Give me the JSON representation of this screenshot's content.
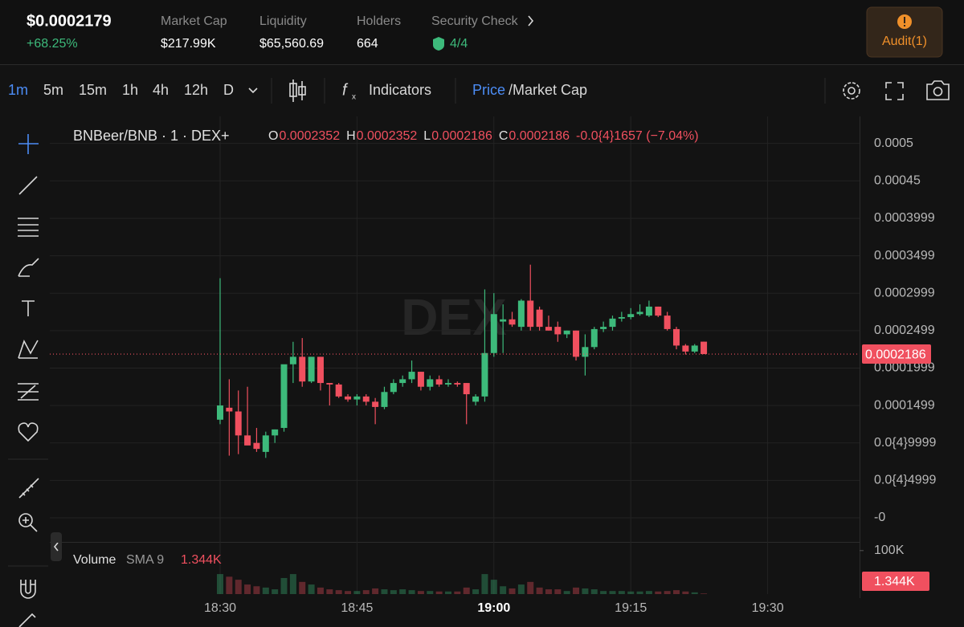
{
  "header": {
    "price": "$0.0002179",
    "change": "+68.25%",
    "stats": [
      {
        "label": "Market Cap",
        "value": "$217.99K"
      },
      {
        "label": "Liquidity",
        "value": "$65,560.69"
      },
      {
        "label": "Holders",
        "value": "664"
      }
    ],
    "security": {
      "label": "Security Check",
      "value": "4/4"
    },
    "audit": "Audit(1)"
  },
  "toolbar": {
    "intervals": [
      "1m",
      "5m",
      "15m",
      "1h",
      "4h",
      "12h",
      "D"
    ],
    "indicators": "Indicators",
    "price": "Price",
    "market_cap": "/Market Cap"
  },
  "legend": {
    "symbol": "BNBeer/BNB · 1 · DEX+",
    "ohlc": [
      {
        "key": "O",
        "value": "0.0002352"
      },
      {
        "key": "H",
        "value": "0.0002352"
      },
      {
        "key": "L",
        "value": "0.0002186"
      },
      {
        "key": "C",
        "value": "0.0002186"
      }
    ],
    "change": "-0.0{4}1657 (−7.04%)",
    "watermark": "DEX",
    "volume_title": "Volume",
    "volume_sma": "SMA 9"
  },
  "chart_data": {
    "type": "candlestick",
    "up_color": "#3dba7b",
    "down_color": "#f0505f",
    "ylim": [
      -3.22e-05,
      0.000536
    ],
    "yticks": [
      0.0005,
      0.00045,
      0.0003999,
      0.0003499,
      0.0002999,
      0.0002499,
      0.0001999,
      0.0001499,
      {
        "value": 9.999e-05,
        "label": "0.0{4}9999"
      },
      {
        "value": 4.999e-05,
        "label": "0.0{4}4999"
      },
      {
        "value": 0,
        "label": "-0"
      }
    ],
    "xticks": [
      "18:30",
      "18:45",
      "19:00",
      "19:15",
      "19:30"
    ],
    "bold_xtick": "19:00",
    "last_price": 0.0002186,
    "candles": [
      {
        "o": 0.000131,
        "h": 0.00032,
        "l": 0.000125,
        "c": 0.00015
      },
      {
        "o": 0.000147,
        "h": 0.000185,
        "l": 8.3e-05,
        "c": 0.000142
      },
      {
        "o": 0.000142,
        "h": 0.00017,
        "l": 8.5e-05,
        "c": 0.00011
      },
      {
        "o": 0.00011,
        "h": 0.000175,
        "l": 0.0001,
        "c": 9.66e-05
      },
      {
        "o": 0.0001,
        "h": 0.00012,
        "l": 8.8e-05,
        "c": 9.2e-05
      },
      {
        "o": 8.8e-05,
        "h": 0.000115,
        "l": 8e-05,
        "c": 0.00011
      },
      {
        "o": 0.00011,
        "h": 0.000118,
        "l": 0.0001,
        "c": 0.000118
      },
      {
        "o": 0.00012,
        "h": 0.0002,
        "l": 0.000115,
        "c": 0.000205
      },
      {
        "o": 0.000205,
        "h": 0.000235,
        "l": 0.00018,
        "c": 0.000215
      },
      {
        "o": 0.000215,
        "h": 0.00024,
        "l": 0.000175,
        "c": 0.000182
      },
      {
        "o": 0.000182,
        "h": 0.000215,
        "l": 0.00018,
        "c": 0.000215
      },
      {
        "o": 0.000215,
        "h": 0.000215,
        "l": 0.00017,
        "c": 0.00018
      },
      {
        "o": 0.00018,
        "h": 0.00018,
        "l": 0.00015,
        "c": 0.000178
      },
      {
        "o": 0.000178,
        "h": 0.00018,
        "l": 0.00016,
        "c": 0.000162
      },
      {
        "o": 0.000162,
        "h": 0.000165,
        "l": 0.000155,
        "c": 0.000158
      },
      {
        "o": 0.000158,
        "h": 0.000165,
        "l": 0.00015,
        "c": 0.000162
      },
      {
        "o": 0.000162,
        "h": 0.000165,
        "l": 0.00015,
        "c": 0.000155
      },
      {
        "o": 0.000155,
        "h": 0.00016,
        "l": 0.000125,
        "c": 0.000148
      },
      {
        "o": 0.000148,
        "h": 0.000175,
        "l": 0.000145,
        "c": 0.000168
      },
      {
        "o": 0.000168,
        "h": 0.000185,
        "l": 0.000165,
        "c": 0.00018
      },
      {
        "o": 0.00018,
        "h": 0.00019,
        "l": 0.000175,
        "c": 0.000185
      },
      {
        "o": 0.000185,
        "h": 0.00021,
        "l": 0.00018,
        "c": 0.000195
      },
      {
        "o": 0.000195,
        "h": 0.000195,
        "l": 0.00017,
        "c": 0.000175
      },
      {
        "o": 0.000175,
        "h": 0.00019,
        "l": 0.00017,
        "c": 0.000185
      },
      {
        "o": 0.000185,
        "h": 0.00019,
        "l": 0.000175,
        "c": 0.000178
      },
      {
        "o": 0.000178,
        "h": 0.000185,
        "l": 0.000175,
        "c": 0.00018
      },
      {
        "o": 0.00018,
        "h": 0.000182,
        "l": 0.000175,
        "c": 0.000178
      },
      {
        "o": 0.00018,
        "h": 0.00018,
        "l": 0.000125,
        "c": 0.000165
      },
      {
        "o": 0.000155,
        "h": 0.000165,
        "l": 0.00015,
        "c": 0.000162
      },
      {
        "o": 0.000162,
        "h": 0.000305,
        "l": 0.000155,
        "c": 0.00022
      },
      {
        "o": 0.00022,
        "h": 0.0003,
        "l": 0.000215,
        "c": 0.000272
      },
      {
        "o": 0.000262,
        "h": 0.000285,
        "l": 0.00022,
        "c": 0.000265
      },
      {
        "o": 0.000265,
        "h": 0.000275,
        "l": 0.000255,
        "c": 0.000258
      },
      {
        "o": 0.000255,
        "h": 0.000292,
        "l": 0.00025,
        "c": 0.00029
      },
      {
        "o": 0.00029,
        "h": 0.000338,
        "l": 0.00025,
        "c": 0.000255
      },
      {
        "o": 0.000278,
        "h": 0.000282,
        "l": 0.00025,
        "c": 0.000255
      },
      {
        "o": 0.000255,
        "h": 0.00027,
        "l": 0.00025,
        "c": 0.00025
      },
      {
        "o": 0.000255,
        "h": 0.000262,
        "l": 0.000235,
        "c": 0.000245
      },
      {
        "o": 0.000245,
        "h": 0.00025,
        "l": 0.00024,
        "c": 0.00025
      },
      {
        "o": 0.00025,
        "h": 0.00025,
        "l": 0.00021,
        "c": 0.000215
      },
      {
        "o": 0.000215,
        "h": 0.000245,
        "l": 0.00019,
        "c": 0.000228
      },
      {
        "o": 0.000228,
        "h": 0.000255,
        "l": 0.000225,
        "c": 0.000252
      },
      {
        "o": 0.000252,
        "h": 0.000262,
        "l": 0.000248,
        "c": 0.000255
      },
      {
        "o": 0.000255,
        "h": 0.00027,
        "l": 0.00025,
        "c": 0.000266
      },
      {
        "o": 0.000266,
        "h": 0.000275,
        "l": 0.000262,
        "c": 0.000268
      },
      {
        "o": 0.000268,
        "h": 0.00028,
        "l": 0.000265,
        "c": 0.000272
      },
      {
        "o": 0.000272,
        "h": 0.000285,
        "l": 0.00027,
        "c": 0.000275
      },
      {
        "o": 0.00027,
        "h": 0.00029,
        "l": 0.000268,
        "c": 0.000282
      },
      {
        "o": 0.000282,
        "h": 0.000282,
        "l": 0.000268,
        "c": 0.00027
      },
      {
        "o": 0.00027,
        "h": 0.000275,
        "l": 0.00025,
        "c": 0.000252
      },
      {
        "o": 0.000252,
        "h": 0.000255,
        "l": 0.000225,
        "c": 0.00023
      },
      {
        "o": 0.00023,
        "h": 0.000232,
        "l": 0.000218,
        "c": 0.000222
      },
      {
        "o": 0.000222,
        "h": 0.000232,
        "l": 0.00022,
        "c": 0.00023
      },
      {
        "o": 0.0002352,
        "h": 0.0002352,
        "l": 0.0002186,
        "c": 0.0002186
      }
    ],
    "volume": {
      "ylim": [
        0,
        120000
      ],
      "yticks": [
        {
          "value": 100000,
          "label": "100K"
        }
      ],
      "values": [
        46000,
        40000,
        33000,
        22000,
        18000,
        15000,
        11000,
        37000,
        46000,
        28000,
        22000,
        15000,
        11000,
        9000,
        7000,
        7000,
        9000,
        13000,
        11000,
        9000,
        11000,
        9000,
        7000,
        7000,
        6000,
        6000,
        6000,
        15000,
        11000,
        46000,
        33000,
        18000,
        13000,
        22000,
        28000,
        15000,
        11000,
        11000,
        7000,
        15000,
        13000,
        11000,
        7000,
        7000,
        7000,
        6000,
        6000,
        7000,
        6000,
        7000,
        9000,
        6000,
        4000,
        1344
      ],
      "value_labels": {
        "53": "1.344K"
      }
    }
  }
}
